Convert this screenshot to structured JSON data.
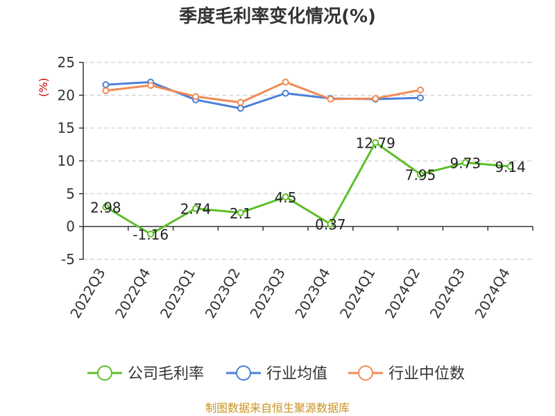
{
  "chart_data": {
    "type": "line",
    "title": "季度毛利率变化情况(%)",
    "ylabel": "(%)",
    "xlabel": "",
    "ylim": [
      -5,
      25
    ],
    "yticks": [
      -5,
      0,
      5,
      10,
      15,
      20,
      25
    ],
    "ytick_labels": [
      "-5",
      "0",
      "5",
      "10",
      "15",
      "20",
      "25"
    ],
    "categories": [
      "2022Q3",
      "2022Q4",
      "2023Q1",
      "2023Q2",
      "2023Q3",
      "2023Q4",
      "2024Q1",
      "2024Q2",
      "2024Q3",
      "2024Q4"
    ],
    "grid": true,
    "legend_position": "bottom",
    "series": [
      {
        "name": "公司毛利率",
        "color": "#5cbf28",
        "values": [
          2.98,
          -1.16,
          2.74,
          2.1,
          4.5,
          0.37,
          12.79,
          7.95,
          9.73,
          9.14
        ],
        "labels": [
          "2.98",
          "-1.16",
          "2.74",
          "2.1",
          "4.5",
          "0.37",
          "12.79",
          "7.95",
          "9.73",
          "9.14"
        ]
      },
      {
        "name": "行业均值",
        "color": "#4a7fd8",
        "values": [
          21.6,
          22.0,
          19.3,
          18.0,
          20.3,
          19.5,
          19.4,
          19.6,
          null,
          null
        ]
      },
      {
        "name": "行业中位数",
        "color": "#f28a54",
        "values": [
          20.7,
          21.5,
          19.8,
          18.9,
          22.0,
          19.4,
          19.5,
          20.8,
          null,
          null
        ]
      }
    ]
  },
  "source": "制图数据来自恒生聚源数据库"
}
